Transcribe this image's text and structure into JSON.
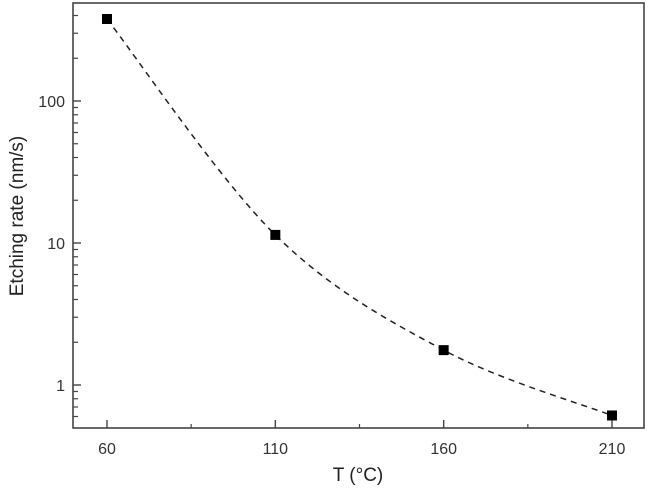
{
  "chart_data": {
    "type": "scatter",
    "title": "",
    "xlabel": "T (°C)",
    "ylabel": "Etching rate (nm/s)",
    "x_scale": "linear",
    "y_scale": "log",
    "xlim": [
      50,
      220
    ],
    "ylim": [
      0.45,
      580
    ],
    "x_ticks": [
      60,
      110,
      160,
      210
    ],
    "x_tick_labels": [
      "60",
      "110",
      "160",
      "210"
    ],
    "y_ticks": [
      1,
      10,
      100
    ],
    "y_tick_labels": [
      "1",
      "10",
      "100"
    ],
    "grid": false,
    "legend": null,
    "series": [
      {
        "name": "Etching rate",
        "marker": "square",
        "color": "#000000",
        "line": "dashed fit curve",
        "x": [
          60,
          110,
          160,
          210
        ],
        "y": [
          378,
          11.4,
          1.76,
          0.61
        ]
      }
    ]
  }
}
